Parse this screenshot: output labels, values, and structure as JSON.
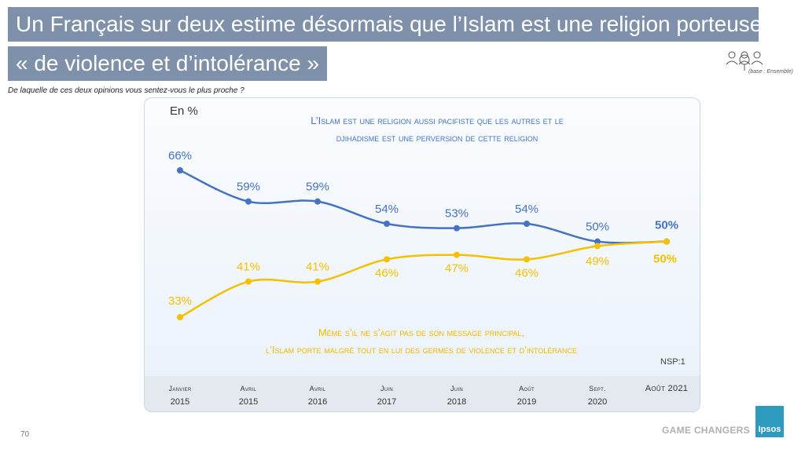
{
  "header": {
    "title_line1": "Un Français sur deux estime désormais que l’Islam est une religion porteuse",
    "title_line2": "« de violence et d’intolérance »",
    "subtitle": "De laquelle de ces deux opinions vous sentez-vous le plus proche ?",
    "base_note": "(base : Ensemble)"
  },
  "footer": {
    "page_number": "70",
    "tagline": "GAME CHANGERS",
    "logo_text": "Ipsos"
  },
  "colors": {
    "title_bg": "#7f90aa",
    "blue_series": "#4472c4",
    "yellow_series": "#f5c000",
    "accent_logo": "#2d9bbd"
  },
  "chart_data": {
    "type": "line",
    "unit": "En %",
    "categories": [
      [
        "Janvier",
        "2015"
      ],
      [
        "Avril",
        "2015"
      ],
      [
        "Avril",
        "2016"
      ],
      [
        "Juin",
        "2017"
      ],
      [
        "Juin",
        "2018"
      ],
      [
        "Août",
        "2019"
      ],
      [
        "Sept.",
        "2020"
      ],
      [
        "Août 2021",
        ""
      ]
    ],
    "series": [
      {
        "name": "L’Islam est une religion aussi pacifiste que les autres et le djihadisme est une perversion de cette religion",
        "name_lines": [
          "L’Islam est une religion aussi pacifiste que les autres et le",
          "djihadisme est une perversion de cette religion"
        ],
        "values": [
          66,
          59,
          59,
          54,
          53,
          54,
          50,
          50
        ],
        "labels": [
          "66%",
          "59%",
          "59%",
          "54%",
          "53%",
          "54%",
          "50%",
          "50%"
        ]
      },
      {
        "name": "Même s’il ne s’agit pas de son message principal, l’Islam porte malgré tout en lui des germes de violence et d’intolérance",
        "name_lines": [
          "Même s’il ne s’agit pas de son message principal,",
          "l’Islam porte malgré tout en lui des germes de violence et d’intolérance"
        ],
        "values": [
          33,
          41,
          41,
          46,
          47,
          46,
          49,
          50
        ],
        "labels": [
          "33%",
          "41%",
          "41%",
          "46%",
          "47%",
          "46%",
          "49%",
          "50%"
        ]
      }
    ],
    "note": "NSP:1",
    "legend": "inline"
  }
}
